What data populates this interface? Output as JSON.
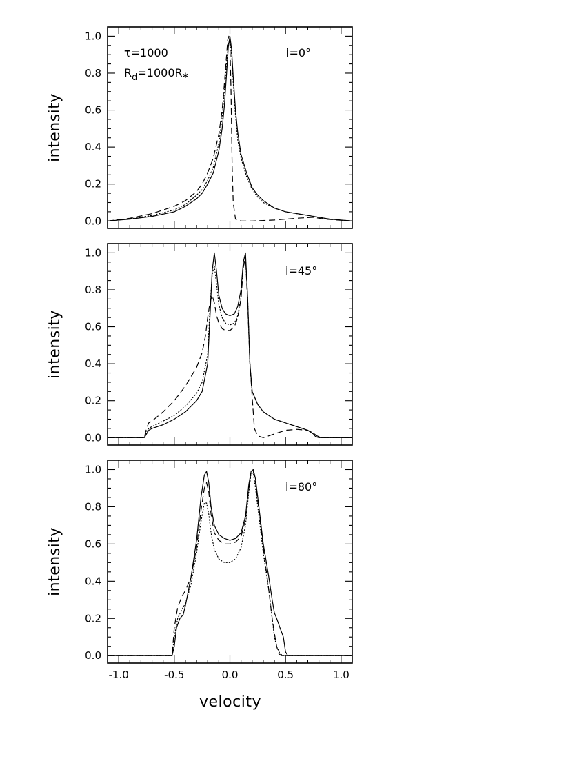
{
  "chart_data": [
    {
      "type": "line",
      "panel": "top",
      "xlabel": "",
      "ylabel": "intensity",
      "xlim": [
        -1.1,
        1.1
      ],
      "ylim": [
        -0.04,
        1.05
      ],
      "yticks": [
        "0.0",
        "0.2",
        "0.4",
        "0.6",
        "0.8",
        "1.0"
      ],
      "xticks": [],
      "annotations": {
        "tau": "τ=1000",
        "rd_base": "R",
        "rd_sub": "d",
        "rd_rest": "=1000R",
        "rd_star": "*",
        "incl": "i=0°"
      },
      "series": [
        {
          "style": "solid",
          "x": [
            -1.1,
            -0.9,
            -0.7,
            -0.5,
            -0.4,
            -0.3,
            -0.25,
            -0.2,
            -0.15,
            -0.1,
            -0.07,
            -0.05,
            -0.03,
            -0.015,
            0.0,
            0.015,
            0.03,
            0.05,
            0.07,
            0.1,
            0.15,
            0.2,
            0.25,
            0.3,
            0.4,
            0.5,
            0.7,
            0.9,
            1.1
          ],
          "y": [
            0.0,
            0.01,
            0.025,
            0.05,
            0.08,
            0.12,
            0.15,
            0.2,
            0.26,
            0.38,
            0.5,
            0.62,
            0.8,
            0.94,
            1.0,
            0.93,
            0.78,
            0.6,
            0.48,
            0.36,
            0.26,
            0.18,
            0.14,
            0.11,
            0.07,
            0.05,
            0.03,
            0.01,
            0.0
          ]
        },
        {
          "style": "dotted",
          "x": [
            -1.1,
            -0.9,
            -0.7,
            -0.5,
            -0.4,
            -0.3,
            -0.25,
            -0.2,
            -0.15,
            -0.1,
            -0.07,
            -0.05,
            -0.03,
            -0.015,
            0.0,
            0.015,
            0.03,
            0.05,
            0.07,
            0.1,
            0.15,
            0.2,
            0.25,
            0.3,
            0.4,
            0.5,
            0.7,
            0.9,
            1.1
          ],
          "y": [
            0.0,
            0.012,
            0.03,
            0.06,
            0.09,
            0.14,
            0.17,
            0.22,
            0.29,
            0.42,
            0.56,
            0.7,
            0.86,
            0.96,
            0.98,
            0.9,
            0.75,
            0.57,
            0.44,
            0.34,
            0.24,
            0.17,
            0.13,
            0.1,
            0.07,
            0.05,
            0.03,
            0.01,
            0.0
          ]
        },
        {
          "style": "dashed",
          "x": [
            -1.1,
            -0.9,
            -0.7,
            -0.5,
            -0.4,
            -0.3,
            -0.25,
            -0.2,
            -0.15,
            -0.1,
            -0.07,
            -0.05,
            -0.03,
            -0.02,
            -0.01,
            0.0,
            0.01,
            0.02,
            0.03,
            0.05,
            0.1,
            0.2,
            0.4,
            0.6,
            0.75,
            0.85,
            1.1
          ],
          "y": [
            0.0,
            0.015,
            0.04,
            0.08,
            0.11,
            0.16,
            0.2,
            0.26,
            0.34,
            0.47,
            0.6,
            0.74,
            0.9,
            0.98,
            1.0,
            0.96,
            0.7,
            0.3,
            0.1,
            0.01,
            0.0,
            0.0,
            0.005,
            0.015,
            0.02,
            0.01,
            0.0
          ]
        }
      ]
    },
    {
      "type": "line",
      "panel": "middle",
      "xlabel": "",
      "ylabel": "intensity",
      "xlim": [
        -1.1,
        1.1
      ],
      "ylim": [
        -0.04,
        1.05
      ],
      "yticks": [
        "0.0",
        "0.2",
        "0.4",
        "0.6",
        "0.8",
        "1.0"
      ],
      "xticks": [],
      "annotations": {
        "incl": "i=45°"
      },
      "series": [
        {
          "style": "solid",
          "x": [
            -1.1,
            -0.8,
            -0.77,
            -0.75,
            -0.73,
            -0.7,
            -0.6,
            -0.5,
            -0.4,
            -0.3,
            -0.25,
            -0.2,
            -0.18,
            -0.16,
            -0.14,
            -0.12,
            -0.1,
            -0.07,
            -0.04,
            0.0,
            0.04,
            0.07,
            0.1,
            0.12,
            0.14,
            0.16,
            0.18,
            0.2,
            0.25,
            0.3,
            0.4,
            0.5,
            0.6,
            0.7,
            0.75,
            0.77,
            0.8,
            1.1
          ],
          "y": [
            0.0,
            0.0,
            0.0,
            0.02,
            0.04,
            0.05,
            0.07,
            0.1,
            0.14,
            0.2,
            0.25,
            0.4,
            0.65,
            0.9,
            1.0,
            0.9,
            0.77,
            0.7,
            0.67,
            0.66,
            0.67,
            0.71,
            0.8,
            0.95,
            1.0,
            0.75,
            0.4,
            0.25,
            0.18,
            0.14,
            0.1,
            0.08,
            0.06,
            0.04,
            0.02,
            0.005,
            0.0,
            0.0
          ]
        },
        {
          "style": "dotted",
          "x": [
            -1.1,
            -0.8,
            -0.77,
            -0.75,
            -0.73,
            -0.7,
            -0.6,
            -0.5,
            -0.4,
            -0.3,
            -0.25,
            -0.2,
            -0.18,
            -0.16,
            -0.14,
            -0.12,
            -0.1,
            -0.07,
            -0.04,
            0.0,
            0.04,
            0.07,
            0.1,
            0.12,
            0.14,
            0.16,
            0.18,
            0.2,
            0.25,
            0.3,
            0.4,
            0.5,
            0.6,
            0.7,
            0.75,
            0.77,
            0.8,
            1.1
          ],
          "y": [
            0.0,
            0.0,
            0.0,
            0.03,
            0.05,
            0.06,
            0.09,
            0.12,
            0.17,
            0.24,
            0.3,
            0.45,
            0.7,
            0.88,
            0.93,
            0.83,
            0.72,
            0.65,
            0.62,
            0.61,
            0.62,
            0.66,
            0.76,
            0.92,
            0.98,
            0.75,
            0.4,
            0.25,
            0.18,
            0.14,
            0.1,
            0.08,
            0.06,
            0.04,
            0.02,
            0.005,
            0.0,
            0.0
          ]
        },
        {
          "style": "dashed",
          "x": [
            -1.1,
            -0.8,
            -0.77,
            -0.75,
            -0.73,
            -0.7,
            -0.6,
            -0.5,
            -0.4,
            -0.3,
            -0.25,
            -0.22,
            -0.2,
            -0.18,
            -0.16,
            -0.14,
            -0.12,
            -0.1,
            -0.07,
            -0.04,
            0.0,
            0.04,
            0.07,
            0.1,
            0.12,
            0.14,
            0.16,
            0.18,
            0.2,
            0.22,
            0.25,
            0.3,
            0.4,
            0.5,
            0.6,
            0.7,
            0.75,
            0.78,
            0.82,
            1.1
          ],
          "y": [
            0.0,
            0.0,
            0.0,
            0.05,
            0.08,
            0.09,
            0.14,
            0.2,
            0.28,
            0.38,
            0.46,
            0.55,
            0.65,
            0.73,
            0.77,
            0.73,
            0.66,
            0.62,
            0.59,
            0.58,
            0.58,
            0.6,
            0.65,
            0.75,
            0.92,
            0.98,
            0.72,
            0.4,
            0.22,
            0.05,
            0.01,
            0.0,
            0.02,
            0.04,
            0.045,
            0.04,
            0.025,
            0.01,
            0.0,
            0.0
          ]
        }
      ]
    },
    {
      "type": "line",
      "panel": "bottom",
      "xlabel": "velocity",
      "ylabel": "intensity",
      "xlim": [
        -1.1,
        1.1
      ],
      "ylim": [
        -0.04,
        1.05
      ],
      "yticks": [
        "0.0",
        "0.2",
        "0.4",
        "0.6",
        "0.8",
        "1.0"
      ],
      "xticks": [
        "-1.0",
        "-0.5",
        "0.0",
        "0.5",
        "1.0"
      ],
      "annotations": {
        "incl": "i=80°"
      },
      "series": [
        {
          "style": "solid",
          "x": [
            -1.1,
            -0.52,
            -0.5,
            -0.48,
            -0.45,
            -0.42,
            -0.4,
            -0.35,
            -0.3,
            -0.26,
            -0.23,
            -0.21,
            -0.19,
            -0.17,
            -0.14,
            -0.1,
            -0.05,
            0.0,
            0.05,
            0.1,
            0.14,
            0.17,
            0.19,
            0.21,
            0.23,
            0.26,
            0.3,
            0.35,
            0.38,
            0.4,
            0.42,
            0.45,
            0.48,
            0.5,
            0.52,
            1.1
          ],
          "y": [
            0.0,
            0.0,
            0.05,
            0.15,
            0.2,
            0.22,
            0.27,
            0.42,
            0.62,
            0.85,
            0.97,
            0.99,
            0.93,
            0.8,
            0.7,
            0.65,
            0.63,
            0.62,
            0.63,
            0.66,
            0.75,
            0.92,
            0.99,
            1.0,
            0.95,
            0.8,
            0.6,
            0.42,
            0.3,
            0.23,
            0.2,
            0.15,
            0.1,
            0.02,
            0.0,
            0.0
          ]
        },
        {
          "style": "dotted",
          "x": [
            -1.1,
            -0.52,
            -0.5,
            -0.47,
            -0.43,
            -0.4,
            -0.35,
            -0.3,
            -0.26,
            -0.23,
            -0.21,
            -0.19,
            -0.17,
            -0.14,
            -0.1,
            -0.05,
            0.0,
            0.05,
            0.1,
            0.14,
            0.17,
            0.19,
            0.21,
            0.23,
            0.26,
            0.3,
            0.35,
            0.38,
            0.4,
            0.42,
            0.45,
            0.48,
            1.1
          ],
          "y": [
            0.0,
            0.0,
            0.1,
            0.2,
            0.25,
            0.28,
            0.38,
            0.55,
            0.72,
            0.82,
            0.82,
            0.76,
            0.66,
            0.57,
            0.52,
            0.5,
            0.5,
            0.52,
            0.58,
            0.7,
            0.88,
            0.98,
            0.98,
            0.9,
            0.75,
            0.55,
            0.35,
            0.2,
            0.1,
            0.05,
            0.01,
            0.0,
            0.0
          ]
        },
        {
          "style": "dashed",
          "x": [
            -1.1,
            -0.52,
            -0.5,
            -0.47,
            -0.43,
            -0.4,
            -0.35,
            -0.3,
            -0.26,
            -0.23,
            -0.21,
            -0.19,
            -0.17,
            -0.14,
            -0.1,
            -0.05,
            0.0,
            0.05,
            0.1,
            0.14,
            0.17,
            0.19,
            0.21,
            0.23,
            0.26,
            0.3,
            0.35,
            0.38,
            0.4,
            0.42,
            0.44,
            0.46,
            1.1
          ],
          "y": [
            0.0,
            0.0,
            0.15,
            0.26,
            0.32,
            0.35,
            0.42,
            0.58,
            0.78,
            0.9,
            0.93,
            0.88,
            0.76,
            0.66,
            0.62,
            0.6,
            0.6,
            0.61,
            0.64,
            0.73,
            0.9,
            0.99,
            0.99,
            0.93,
            0.78,
            0.58,
            0.35,
            0.2,
            0.12,
            0.05,
            0.01,
            0.0,
            0.0
          ]
        }
      ]
    }
  ]
}
